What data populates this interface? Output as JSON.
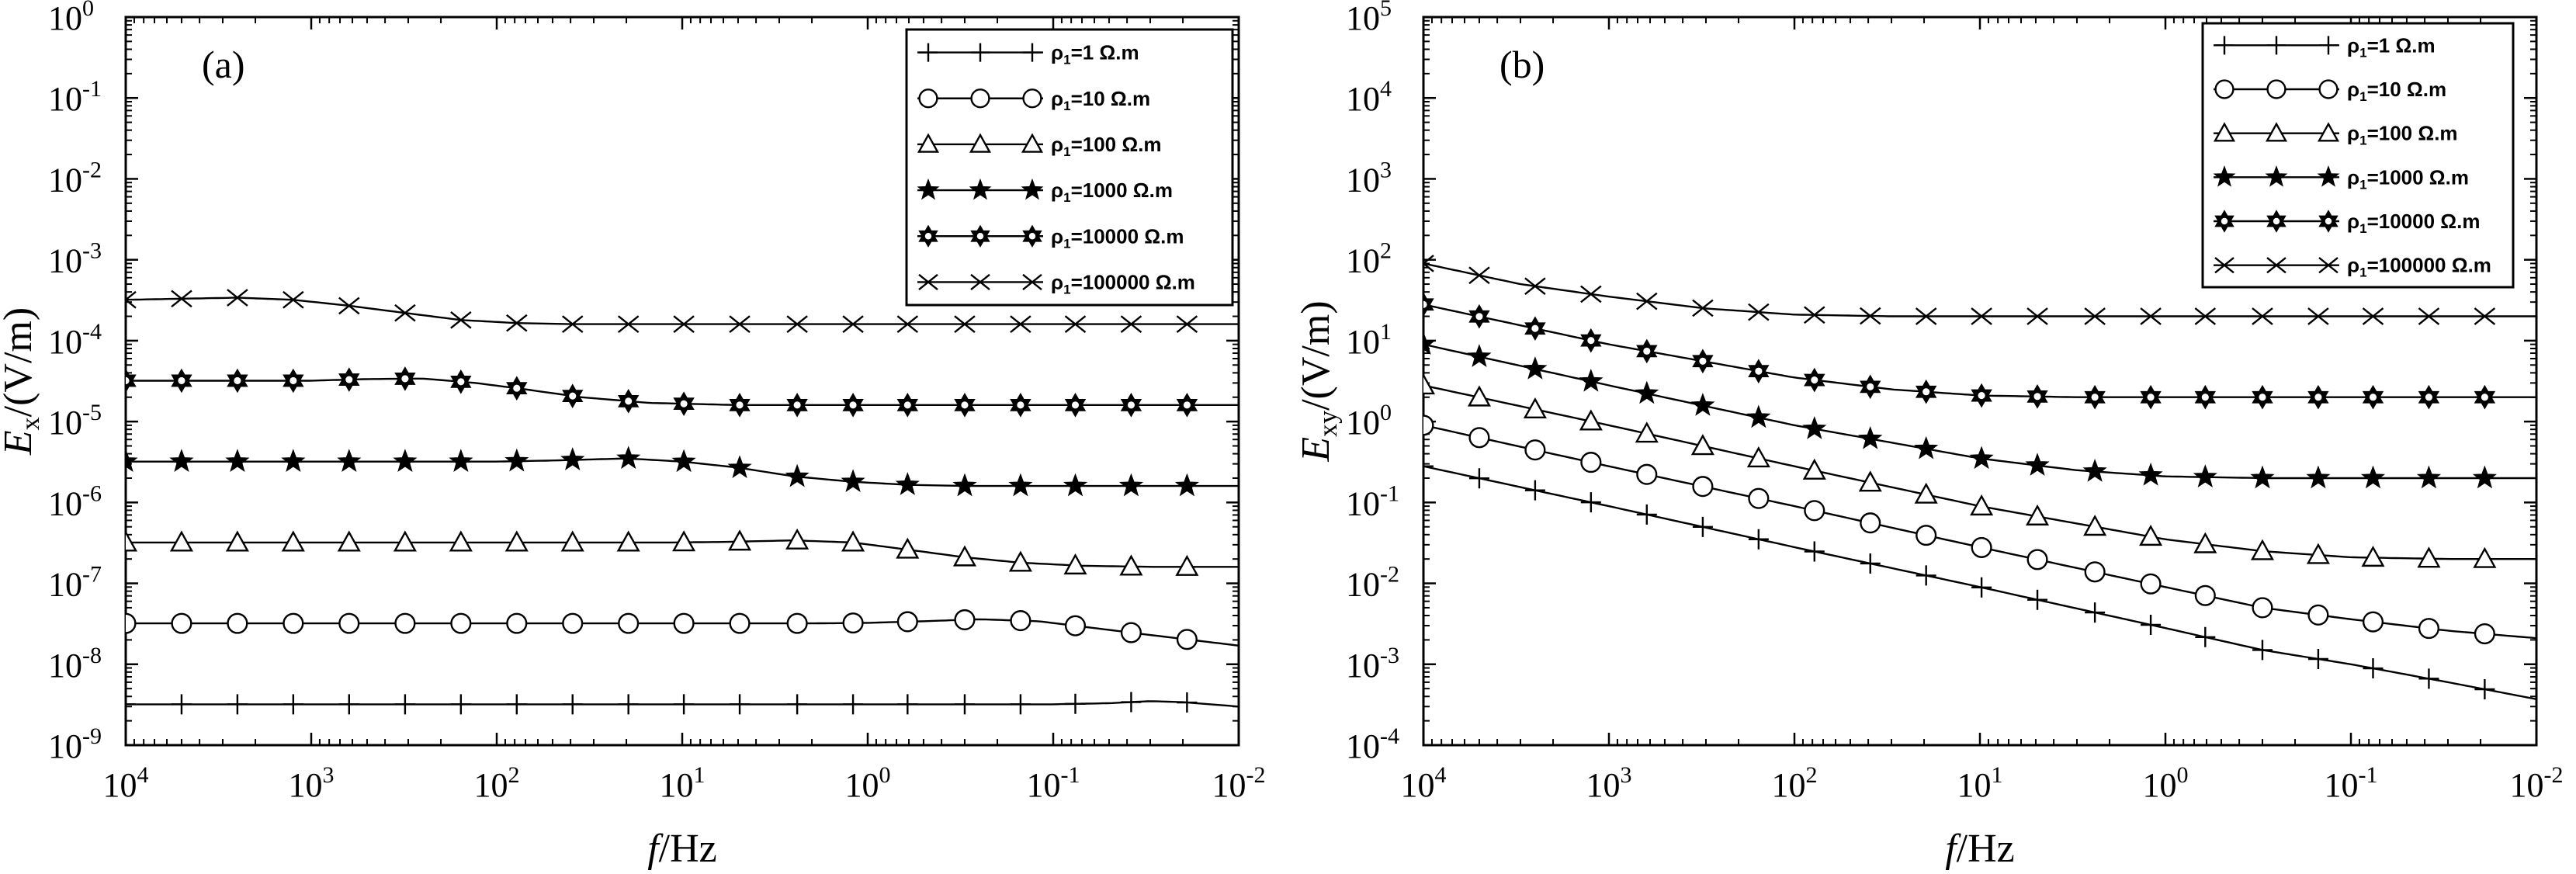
{
  "chart_data": [
    {
      "type": "line",
      "panel_label": "(a)",
      "xlabel_italic": "f",
      "xlabel_unit": "/Hz",
      "ylabel_italic": "E",
      "ylabel_sub": "x",
      "ylabel_unit": "/(V/m)",
      "x_scale": "log",
      "y_scale": "log",
      "x_reversed": true,
      "xlim": [
        10000,
        0.01
      ],
      "ylim": [
        1e-09,
        1
      ],
      "x_ticks": [
        {
          "value": 10000,
          "base": "10",
          "exp": "4"
        },
        {
          "value": 1000,
          "base": "10",
          "exp": "3"
        },
        {
          "value": 100,
          "base": "10",
          "exp": "2"
        },
        {
          "value": 10,
          "base": "10",
          "exp": "1"
        },
        {
          "value": 1,
          "base": "10",
          "exp": "0"
        },
        {
          "value": 0.1,
          "base": "10",
          "exp": "-1"
        },
        {
          "value": 0.01,
          "base": "10",
          "exp": "-2"
        }
      ],
      "y_ticks": [
        {
          "value": 1,
          "base": "10",
          "exp": "0"
        },
        {
          "value": 0.1,
          "base": "10",
          "exp": "-1"
        },
        {
          "value": 0.01,
          "base": "10",
          "exp": "-2"
        },
        {
          "value": 0.001,
          "base": "10",
          "exp": "-3"
        },
        {
          "value": 0.0001,
          "base": "10",
          "exp": "-4"
        },
        {
          "value": 1e-05,
          "base": "10",
          "exp": "-5"
        },
        {
          "value": 1e-06,
          "base": "10",
          "exp": "-6"
        },
        {
          "value": 1e-07,
          "base": "10",
          "exp": "-7"
        },
        {
          "value": 1e-08,
          "base": "10",
          "exp": "-8"
        },
        {
          "value": 1e-09,
          "base": "10",
          "exp": "-9"
        }
      ],
      "legend_position": "top-right",
      "marker_x": [
        10000,
        5000,
        2500,
        1250,
        625,
        312,
        156,
        78,
        39,
        19.5,
        9.8,
        4.9,
        2.4,
        1.2,
        0.61,
        0.3,
        0.15,
        0.076,
        0.038,
        0.019
      ],
      "series": [
        {
          "legend_prefix": "ρ",
          "legend_sub": "1",
          "legend_suffix": "=1 Ω.m",
          "marker": "plus",
          "x": [
            10000,
            1,
            0.1,
            0.05,
            0.03,
            0.02,
            0.01
          ],
          "y": [
            3.2e-09,
            3.2e-09,
            3.2e-09,
            3.3e-09,
            3.5e-09,
            3.4e-09,
            3e-09
          ]
        },
        {
          "legend_prefix": "ρ",
          "legend_sub": "1",
          "legend_suffix": "=10 Ω.m",
          "marker": "circle",
          "x": [
            10000,
            2,
            1,
            0.5,
            0.25,
            0.12,
            0.06,
            0.03,
            0.015,
            0.01
          ],
          "y": [
            3.2e-08,
            3.2e-08,
            3.25e-08,
            3.4e-08,
            3.6e-08,
            3.4e-08,
            2.8e-08,
            2.3e-08,
            1.9e-08,
            1.7e-08
          ]
        },
        {
          "legend_prefix": "ρ",
          "legend_sub": "1",
          "legend_suffix": "=100 Ω.m",
          "marker": "triangle",
          "x": [
            10000,
            12,
            6,
            2.5,
            1.2,
            0.6,
            0.3,
            0.15,
            0.07,
            0.03,
            0.01
          ],
          "y": [
            3.2e-07,
            3.2e-07,
            3.25e-07,
            3.4e-07,
            3.2e-07,
            2.6e-07,
            2.1e-07,
            1.8e-07,
            1.65e-07,
            1.6e-07,
            1.6e-07
          ]
        },
        {
          "legend_prefix": "ρ",
          "legend_sub": "1",
          "legend_suffix": "=1000 Ω.m",
          "marker": "star",
          "x": [
            10000,
            100,
            50,
            20,
            10,
            5,
            2.5,
            1.2,
            0.6,
            0.3,
            0.1,
            0.01
          ],
          "y": [
            3.2e-06,
            3.2e-06,
            3.3e-06,
            3.5e-06,
            3.2e-06,
            2.7e-06,
            2.1e-06,
            1.8e-06,
            1.65e-06,
            1.6e-06,
            1.6e-06,
            1.6e-06
          ]
        },
        {
          "legend_prefix": "ρ",
          "legend_sub": "1",
          "legend_suffix": "=10000 Ω.m",
          "marker": "hexagram",
          "x": [
            10000,
            1000,
            500,
            250,
            130,
            70,
            35,
            15,
            5,
            1,
            0.01
          ],
          "y": [
            3.2e-05,
            3.2e-05,
            3.35e-05,
            3.4e-05,
            3e-05,
            2.5e-05,
            2e-05,
            1.7e-05,
            1.6e-05,
            1.6e-05,
            1.6e-05
          ]
        },
        {
          "legend_prefix": "ρ",
          "legend_sub": "1",
          "legend_suffix": "=100000 Ω.m",
          "marker": "cross",
          "x": [
            10000,
            5000,
            2500,
            1250,
            625,
            312,
            156,
            78,
            39,
            10,
            1,
            0.01
          ],
          "y": [
            0.00032,
            0.00033,
            0.00034,
            0.00032,
            0.00027,
            0.00022,
            0.00018,
            0.000165,
            0.00016,
            0.00016,
            0.00016,
            0.00016
          ]
        }
      ]
    },
    {
      "type": "line",
      "panel_label": "(b)",
      "xlabel_italic": "f",
      "xlabel_unit": "/Hz",
      "ylabel_italic": "E",
      "ylabel_sub": "xy",
      "ylabel_unit": "/(V/m)",
      "x_scale": "log",
      "y_scale": "log",
      "x_reversed": true,
      "xlim": [
        10000,
        0.01
      ],
      "ylim": [
        0.0001,
        100000
      ],
      "x_ticks": [
        {
          "value": 10000,
          "base": "10",
          "exp": "4"
        },
        {
          "value": 1000,
          "base": "10",
          "exp": "3"
        },
        {
          "value": 100,
          "base": "10",
          "exp": "2"
        },
        {
          "value": 10,
          "base": "10",
          "exp": "1"
        },
        {
          "value": 1,
          "base": "10",
          "exp": "0"
        },
        {
          "value": 0.1,
          "base": "10",
          "exp": "-1"
        },
        {
          "value": 0.01,
          "base": "10",
          "exp": "-2"
        }
      ],
      "y_ticks": [
        {
          "value": 100000,
          "base": "10",
          "exp": "5"
        },
        {
          "value": 10000,
          "base": "10",
          "exp": "4"
        },
        {
          "value": 1000,
          "base": "10",
          "exp": "3"
        },
        {
          "value": 100,
          "base": "10",
          "exp": "2"
        },
        {
          "value": 10,
          "base": "10",
          "exp": "1"
        },
        {
          "value": 1,
          "base": "10",
          "exp": "0"
        },
        {
          "value": 0.1,
          "base": "10",
          "exp": "-1"
        },
        {
          "value": 0.01,
          "base": "10",
          "exp": "-2"
        },
        {
          "value": 0.001,
          "base": "10",
          "exp": "-3"
        },
        {
          "value": 0.0001,
          "base": "10",
          "exp": "-4"
        }
      ],
      "legend_position": "top-right",
      "marker_x": [
        10000,
        5000,
        2500,
        1250,
        625,
        312,
        156,
        78,
        39,
        19.5,
        9.8,
        4.9,
        2.4,
        1.2,
        0.61,
        0.3,
        0.15,
        0.076,
        0.038,
        0.019
      ],
      "series": [
        {
          "legend_prefix": "ρ",
          "legend_sub": "1",
          "legend_suffix": "=1 Ω.m",
          "marker": "plus",
          "x": [
            10000,
            1000,
            100,
            10,
            1,
            0.3,
            0.1,
            0.03,
            0.01
          ],
          "y": [
            0.28,
            0.09,
            0.028,
            0.009,
            0.0028,
            0.0015,
            0.001,
            0.0006,
            0.00037
          ]
        },
        {
          "legend_prefix": "ρ",
          "legend_sub": "1",
          "legend_suffix": "=10 Ω.m",
          "marker": "circle",
          "x": [
            10000,
            1000,
            100,
            10,
            1,
            0.3,
            0.1,
            0.03,
            0.01
          ],
          "y": [
            0.9,
            0.28,
            0.09,
            0.028,
            0.009,
            0.005,
            0.0036,
            0.0026,
            0.0021
          ]
        },
        {
          "legend_prefix": "ρ",
          "legend_sub": "1",
          "legend_suffix": "=100 Ω.m",
          "marker": "triangle",
          "x": [
            10000,
            1000,
            100,
            10,
            1,
            0.3,
            0.1,
            0.03,
            0.01
          ],
          "y": [
            2.8,
            0.9,
            0.28,
            0.09,
            0.035,
            0.025,
            0.021,
            0.02,
            0.02
          ]
        },
        {
          "legend_prefix": "ρ",
          "legend_sub": "1",
          "legend_suffix": "=1000 Ω.m",
          "marker": "star",
          "x": [
            10000,
            1000,
            100,
            10,
            3,
            1,
            0.3,
            0.1,
            0.01
          ],
          "y": [
            9,
            2.8,
            0.9,
            0.35,
            0.25,
            0.21,
            0.2,
            0.2,
            0.2
          ]
        },
        {
          "legend_prefix": "ρ",
          "legend_sub": "1",
          "legend_suffix": "=10000 Ω.m",
          "marker": "hexagram",
          "x": [
            10000,
            1000,
            100,
            30,
            10,
            3,
            1,
            0.1,
            0.01
          ],
          "y": [
            28,
            9,
            3.5,
            2.5,
            2.1,
            2.0,
            2.0,
            2.0,
            2.0
          ]
        },
        {
          "legend_prefix": "ρ",
          "legend_sub": "1",
          "legend_suffix": "=100000 Ω.m",
          "marker": "cross",
          "x": [
            10000,
            3000,
            1000,
            300,
            100,
            30,
            10,
            1,
            0.01
          ],
          "y": [
            90,
            50,
            35,
            25,
            21,
            20,
            20,
            20,
            20
          ]
        }
      ]
    }
  ]
}
